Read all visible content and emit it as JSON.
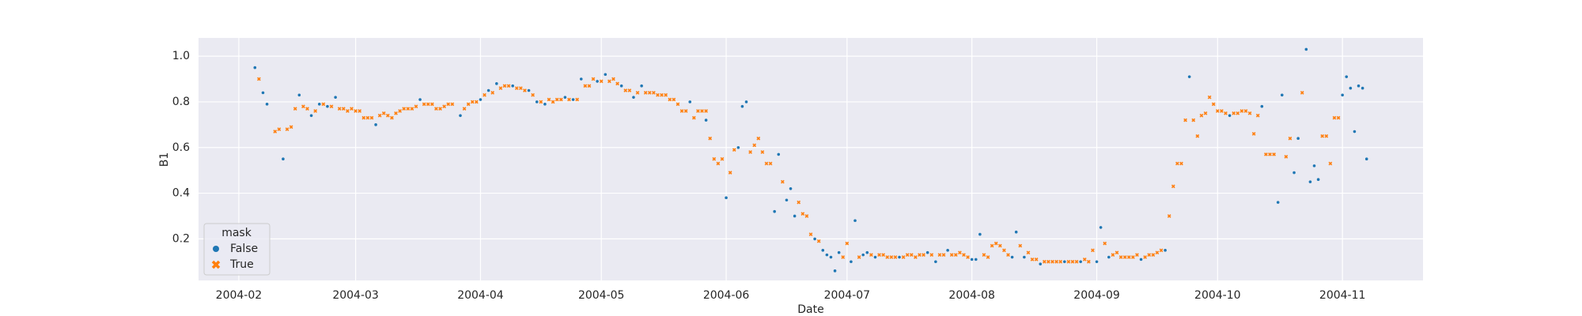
{
  "chart_data": {
    "type": "scatter",
    "x_label": "Date",
    "y_label": "B1",
    "legend_title": "mask",
    "legend_loc": "lower left",
    "grid": true,
    "xlim": [
      "2004-01-22",
      "2004-11-21"
    ],
    "xticks": [
      {
        "value": "2004-02-01",
        "label": "2004-02"
      },
      {
        "value": "2004-03-01",
        "label": "2004-03"
      },
      {
        "value": "2004-04-01",
        "label": "2004-04"
      },
      {
        "value": "2004-05-01",
        "label": "2004-05"
      },
      {
        "value": "2004-06-01",
        "label": "2004-06"
      },
      {
        "value": "2004-07-01",
        "label": "2004-07"
      },
      {
        "value": "2004-08-01",
        "label": "2004-08"
      },
      {
        "value": "2004-09-01",
        "label": "2004-09"
      },
      {
        "value": "2004-10-01",
        "label": "2004-10"
      },
      {
        "value": "2004-11-01",
        "label": "2004-11"
      }
    ],
    "ylim": [
      0.018,
      1.08
    ],
    "yticks": [
      0.2,
      0.4,
      0.6,
      0.8,
      {
        "value": 1,
        "label": "1.0"
      }
    ],
    "series": [
      {
        "name": "False",
        "color": "#1f77b4",
        "marker": "o",
        "x": [
          "2004-02-05",
          "2004-02-07",
          "2004-02-08",
          "2004-02-12",
          "2004-02-16",
          "2004-02-19",
          "2004-02-21",
          "2004-02-23",
          "2004-02-25",
          "2004-03-06",
          "2004-03-17",
          "2004-03-27",
          "2004-04-01",
          "2004-04-03",
          "2004-04-05",
          "2004-04-09",
          "2004-04-13",
          "2004-04-15",
          "2004-04-17",
          "2004-04-22",
          "2004-04-24",
          "2004-04-26",
          "2004-04-30",
          "2004-05-02",
          "2004-05-06",
          "2004-05-09",
          "2004-05-11",
          "2004-05-23",
          "2004-05-27",
          "2004-06-01",
          "2004-06-04",
          "2004-06-05",
          "2004-06-06",
          "2004-06-13",
          "2004-06-14",
          "2004-06-16",
          "2004-06-17",
          "2004-06-18",
          "2004-06-23",
          "2004-06-25",
          "2004-06-26",
          "2004-06-27",
          "2004-06-28",
          "2004-06-29",
          "2004-07-02",
          "2004-07-03",
          "2004-07-05",
          "2004-07-06",
          "2004-07-08",
          "2004-07-14",
          "2004-07-21",
          "2004-07-23",
          "2004-07-26",
          "2004-08-01",
          "2004-08-02",
          "2004-08-03",
          "2004-08-11",
          "2004-08-12",
          "2004-08-14",
          "2004-08-18",
          "2004-08-24",
          "2004-08-28",
          "2004-09-01",
          "2004-09-02",
          "2004-09-04",
          "2004-09-12",
          "2004-09-18",
          "2004-09-24",
          "2004-10-04",
          "2004-10-12",
          "2004-10-16",
          "2004-10-17",
          "2004-10-20",
          "2004-10-21",
          "2004-10-23",
          "2004-10-24",
          "2004-10-25",
          "2004-10-26",
          "2004-11-01",
          "2004-11-02",
          "2004-11-03",
          "2004-11-04",
          "2004-11-05",
          "2004-11-06",
          "2004-11-07"
        ],
        "values": [
          0.95,
          0.84,
          0.79,
          0.55,
          0.83,
          0.74,
          0.79,
          0.78,
          0.82,
          0.7,
          0.81,
          0.74,
          0.81,
          0.85,
          0.88,
          0.87,
          0.85,
          0.8,
          0.79,
          0.82,
          0.81,
          0.9,
          0.89,
          0.92,
          0.87,
          0.82,
          0.87,
          0.8,
          0.72,
          0.38,
          0.6,
          0.78,
          0.8,
          0.32,
          0.57,
          0.37,
          0.42,
          0.3,
          0.2,
          0.15,
          0.13,
          0.12,
          0.06,
          0.14,
          0.1,
          0.28,
          0.13,
          0.14,
          0.12,
          0.12,
          0.14,
          0.1,
          0.15,
          0.11,
          0.11,
          0.22,
          0.12,
          0.23,
          0.12,
          0.09,
          0.1,
          0.1,
          0.1,
          0.25,
          0.12,
          0.11,
          0.15,
          0.91,
          0.74,
          0.78,
          0.36,
          0.83,
          0.49,
          0.64,
          1.03,
          0.45,
          0.52,
          0.46,
          0.83,
          0.91,
          0.86,
          0.67,
          0.87,
          0.86,
          0.55
        ]
      },
      {
        "name": "True",
        "color": "#ff7f0e",
        "marker": "x",
        "x": [
          "2004-02-06",
          "2004-02-10",
          "2004-02-11",
          "2004-02-13",
          "2004-02-14",
          "2004-02-15",
          "2004-02-17",
          "2004-02-18",
          "2004-02-20",
          "2004-02-22",
          "2004-02-24",
          "2004-02-26",
          "2004-02-27",
          "2004-02-28",
          "2004-02-29",
          "2004-03-01",
          "2004-03-02",
          "2004-03-03",
          "2004-03-04",
          "2004-03-05",
          "2004-03-07",
          "2004-03-08",
          "2004-03-09",
          "2004-03-10",
          "2004-03-11",
          "2004-03-12",
          "2004-03-13",
          "2004-03-14",
          "2004-03-15",
          "2004-03-16",
          "2004-03-18",
          "2004-03-19",
          "2004-03-20",
          "2004-03-21",
          "2004-03-22",
          "2004-03-23",
          "2004-03-24",
          "2004-03-25",
          "2004-03-28",
          "2004-03-29",
          "2004-03-30",
          "2004-03-31",
          "2004-04-02",
          "2004-04-04",
          "2004-04-06",
          "2004-04-07",
          "2004-04-08",
          "2004-04-10",
          "2004-04-11",
          "2004-04-12",
          "2004-04-14",
          "2004-04-16",
          "2004-04-18",
          "2004-04-19",
          "2004-04-20",
          "2004-04-21",
          "2004-04-23",
          "2004-04-25",
          "2004-04-27",
          "2004-04-28",
          "2004-04-29",
          "2004-05-01",
          "2004-05-03",
          "2004-05-04",
          "2004-05-05",
          "2004-05-07",
          "2004-05-08",
          "2004-05-10",
          "2004-05-12",
          "2004-05-13",
          "2004-05-14",
          "2004-05-15",
          "2004-05-16",
          "2004-05-17",
          "2004-05-18",
          "2004-05-19",
          "2004-05-20",
          "2004-05-21",
          "2004-05-22",
          "2004-05-24",
          "2004-05-25",
          "2004-05-26",
          "2004-05-27",
          "2004-05-28",
          "2004-05-29",
          "2004-05-30",
          "2004-05-31",
          "2004-06-02",
          "2004-06-03",
          "2004-06-07",
          "2004-06-08",
          "2004-06-09",
          "2004-06-10",
          "2004-06-11",
          "2004-06-12",
          "2004-06-15",
          "2004-06-19",
          "2004-06-20",
          "2004-06-21",
          "2004-06-22",
          "2004-06-24",
          "2004-06-30",
          "2004-07-01",
          "2004-07-04",
          "2004-07-07",
          "2004-07-09",
          "2004-07-10",
          "2004-07-11",
          "2004-07-12",
          "2004-07-13",
          "2004-07-15",
          "2004-07-16",
          "2004-07-17",
          "2004-07-18",
          "2004-07-19",
          "2004-07-20",
          "2004-07-22",
          "2004-07-24",
          "2004-07-25",
          "2004-07-27",
          "2004-07-28",
          "2004-07-29",
          "2004-07-30",
          "2004-07-31",
          "2004-08-04",
          "2004-08-05",
          "2004-08-06",
          "2004-08-07",
          "2004-08-08",
          "2004-08-09",
          "2004-08-10",
          "2004-08-13",
          "2004-08-15",
          "2004-08-16",
          "2004-08-17",
          "2004-08-19",
          "2004-08-20",
          "2004-08-21",
          "2004-08-22",
          "2004-08-23",
          "2004-08-25",
          "2004-08-26",
          "2004-08-27",
          "2004-08-29",
          "2004-08-30",
          "2004-08-31",
          "2004-09-03",
          "2004-09-05",
          "2004-09-06",
          "2004-09-07",
          "2004-09-08",
          "2004-09-09",
          "2004-09-10",
          "2004-09-11",
          "2004-09-13",
          "2004-09-14",
          "2004-09-15",
          "2004-09-16",
          "2004-09-17",
          "2004-09-19",
          "2004-09-20",
          "2004-09-21",
          "2004-09-22",
          "2004-09-23",
          "2004-09-25",
          "2004-09-26",
          "2004-09-27",
          "2004-09-28",
          "2004-09-29",
          "2004-09-30",
          "2004-10-01",
          "2004-10-02",
          "2004-10-03",
          "2004-10-05",
          "2004-10-06",
          "2004-10-07",
          "2004-10-08",
          "2004-10-09",
          "2004-10-10",
          "2004-10-11",
          "2004-10-13",
          "2004-10-14",
          "2004-10-15",
          "2004-10-18",
          "2004-10-19",
          "2004-10-22",
          "2004-10-27",
          "2004-10-28",
          "2004-10-29",
          "2004-10-30",
          "2004-10-31"
        ],
        "values": [
          0.9,
          0.67,
          0.68,
          0.68,
          0.69,
          0.77,
          0.78,
          0.77,
          0.76,
          0.79,
          0.78,
          0.77,
          0.77,
          0.76,
          0.77,
          0.76,
          0.76,
          0.73,
          0.73,
          0.73,
          0.74,
          0.75,
          0.74,
          0.73,
          0.75,
          0.76,
          0.77,
          0.77,
          0.77,
          0.78,
          0.79,
          0.79,
          0.79,
          0.77,
          0.77,
          0.78,
          0.79,
          0.79,
          0.77,
          0.79,
          0.8,
          0.8,
          0.83,
          0.84,
          0.86,
          0.87,
          0.87,
          0.86,
          0.86,
          0.85,
          0.83,
          0.8,
          0.81,
          0.8,
          0.81,
          0.81,
          0.81,
          0.81,
          0.87,
          0.87,
          0.9,
          0.89,
          0.89,
          0.9,
          0.88,
          0.85,
          0.85,
          0.84,
          0.84,
          0.84,
          0.84,
          0.83,
          0.83,
          0.83,
          0.81,
          0.81,
          0.79,
          0.76,
          0.76,
          0.73,
          0.76,
          0.76,
          0.76,
          0.64,
          0.55,
          0.53,
          0.55,
          0.49,
          0.59,
          0.58,
          0.61,
          0.64,
          0.58,
          0.53,
          0.53,
          0.45,
          0.36,
          0.31,
          0.3,
          0.22,
          0.19,
          0.12,
          0.18,
          0.12,
          0.13,
          0.13,
          0.13,
          0.12,
          0.12,
          0.12,
          0.12,
          0.13,
          0.13,
          0.12,
          0.13,
          0.13,
          0.13,
          0.13,
          0.13,
          0.13,
          0.13,
          0.14,
          0.13,
          0.12,
          0.13,
          0.12,
          0.17,
          0.18,
          0.17,
          0.15,
          0.13,
          0.17,
          0.14,
          0.11,
          0.11,
          0.1,
          0.1,
          0.1,
          0.1,
          0.1,
          0.1,
          0.1,
          0.1,
          0.11,
          0.1,
          0.15,
          0.18,
          0.13,
          0.14,
          0.12,
          0.12,
          0.12,
          0.12,
          0.13,
          0.12,
          0.13,
          0.13,
          0.14,
          0.15,
          0.3,
          0.43,
          0.53,
          0.53,
          0.72,
          0.72,
          0.65,
          0.74,
          0.75,
          0.82,
          0.79,
          0.76,
          0.76,
          0.75,
          0.75,
          0.75,
          0.76,
          0.76,
          0.75,
          0.66,
          0.74,
          0.57,
          0.57,
          0.57,
          0.56,
          0.64,
          0.84,
          0.65,
          0.65,
          0.53,
          0.73,
          0.73
        ]
      }
    ]
  }
}
